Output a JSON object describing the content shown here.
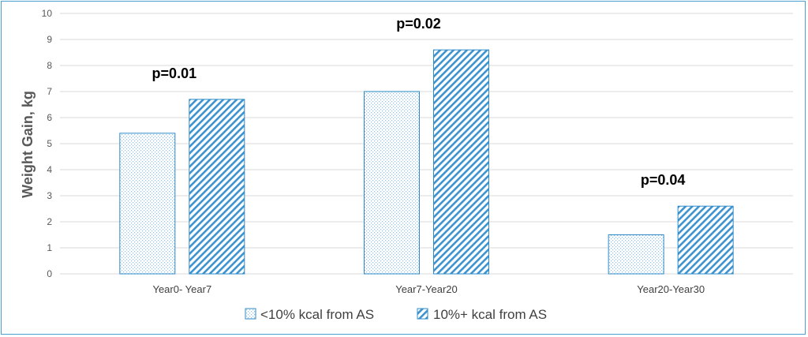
{
  "chart_data": {
    "type": "bar",
    "ylabel": "Weight Gain, kg",
    "ylim": [
      0,
      10
    ],
    "yticks": [
      0,
      1,
      2,
      3,
      4,
      5,
      6,
      7,
      8,
      9,
      10
    ],
    "categories": [
      "Year0- Year7",
      "Year7-Year20",
      "Year20-Year30"
    ],
    "series": [
      {
        "name": "<10% kcal from AS",
        "values": [
          5.4,
          7.0,
          1.5
        ],
        "pattern": "dots"
      },
      {
        "name": "10%+ kcal from AS",
        "values": [
          6.7,
          8.6,
          2.6
        ],
        "pattern": "diagonal-stripes"
      }
    ],
    "annotations": [
      "p=0.01",
      "p=0.02",
      "p=0.04"
    ],
    "grid": true,
    "legend_position": "bottom",
    "colors": {
      "bar_stroke": "#2e8bc7",
      "pattern": "#5aa3d6",
      "grid": "#d9d9d9",
      "frame": "#4a9fd0"
    }
  }
}
